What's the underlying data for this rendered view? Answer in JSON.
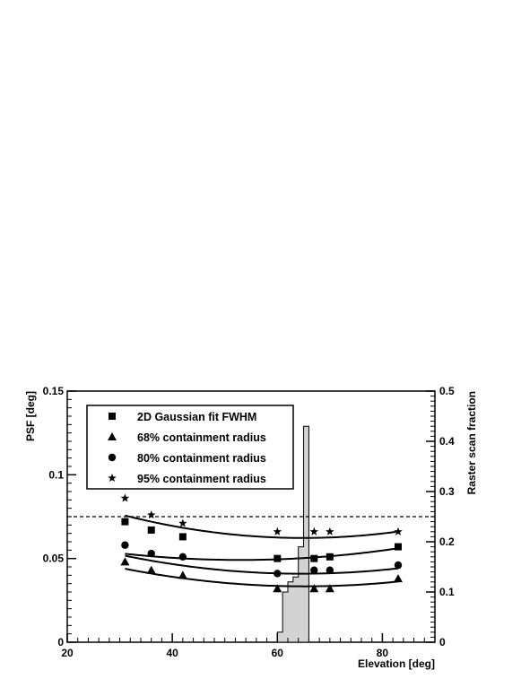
{
  "chart_data": {
    "type": "scatter",
    "xlabel": "Elevation [deg]",
    "ylabel": "PSF [deg]",
    "y2label": "Raster scan fraction",
    "xlim": [
      20,
      90
    ],
    "ylim": [
      0,
      0.15
    ],
    "y2lim": [
      0,
      0.5
    ],
    "x_ticks": [
      20,
      40,
      60,
      80
    ],
    "y_ticks": [
      0,
      0.05,
      0.1,
      0.15
    ],
    "y_tick_labels": [
      "0",
      "0.05",
      "0.1",
      "0.15"
    ],
    "y2_ticks": [
      0,
      0.1,
      0.2,
      0.3,
      0.4,
      0.5
    ],
    "y2_tick_labels": [
      "0",
      "0.1",
      "0.2",
      "0.3",
      "0.4",
      "0.5"
    ],
    "grid": false,
    "legend_position": "top-left",
    "series": [
      {
        "name": "2D Gaussian fit FWHM",
        "marker": "square",
        "x": [
          31,
          36,
          42,
          60,
          67,
          70,
          83
        ],
        "y": [
          0.072,
          0.067,
          0.063,
          0.05,
          0.05,
          0.051,
          0.057
        ],
        "fit": [
          0.0707,
          -0.000815,
          7.7e-06
        ]
      },
      {
        "name": "68% containment radius",
        "marker": "triangle",
        "x": [
          31,
          36,
          42,
          60,
          67,
          70,
          83
        ],
        "y": [
          0.048,
          0.043,
          0.04,
          0.032,
          0.032,
          0.032,
          0.038
        ],
        "fit": [
          0.0716,
          -0.001173,
          9e-06
        ]
      },
      {
        "name": "80% containment radius",
        "marker": "circle",
        "x": [
          31,
          36,
          42,
          60,
          67,
          70,
          83
        ],
        "y": [
          0.058,
          0.053,
          0.051,
          0.041,
          0.043,
          0.043,
          0.046
        ],
        "fit": [
          0.0806,
          -0.001228,
          9.5e-06
        ]
      },
      {
        "name": "95% containment radius",
        "marker": "star",
        "x": [
          31,
          36,
          42,
          60,
          67,
          70,
          83
        ],
        "y": [
          0.086,
          0.076,
          0.071,
          0.066,
          0.066,
          0.066,
          0.066
        ],
        "fit": [
          0.1115,
          -0.001518,
          1.17e-05
        ]
      }
    ],
    "reference_line": {
      "y": 0.075,
      "style": "dashed"
    },
    "histogram": {
      "axis": "right",
      "fill": "#d3d3d3",
      "bin_edges": [
        60,
        61,
        62,
        63,
        64,
        65,
        66
      ],
      "values": [
        0.02,
        0.1,
        0.12,
        0.13,
        0.19,
        0.43
      ]
    },
    "colors": {
      "markers": "#000000",
      "histogram_fill": "#d3d3d3",
      "frame": "#000000"
    }
  }
}
